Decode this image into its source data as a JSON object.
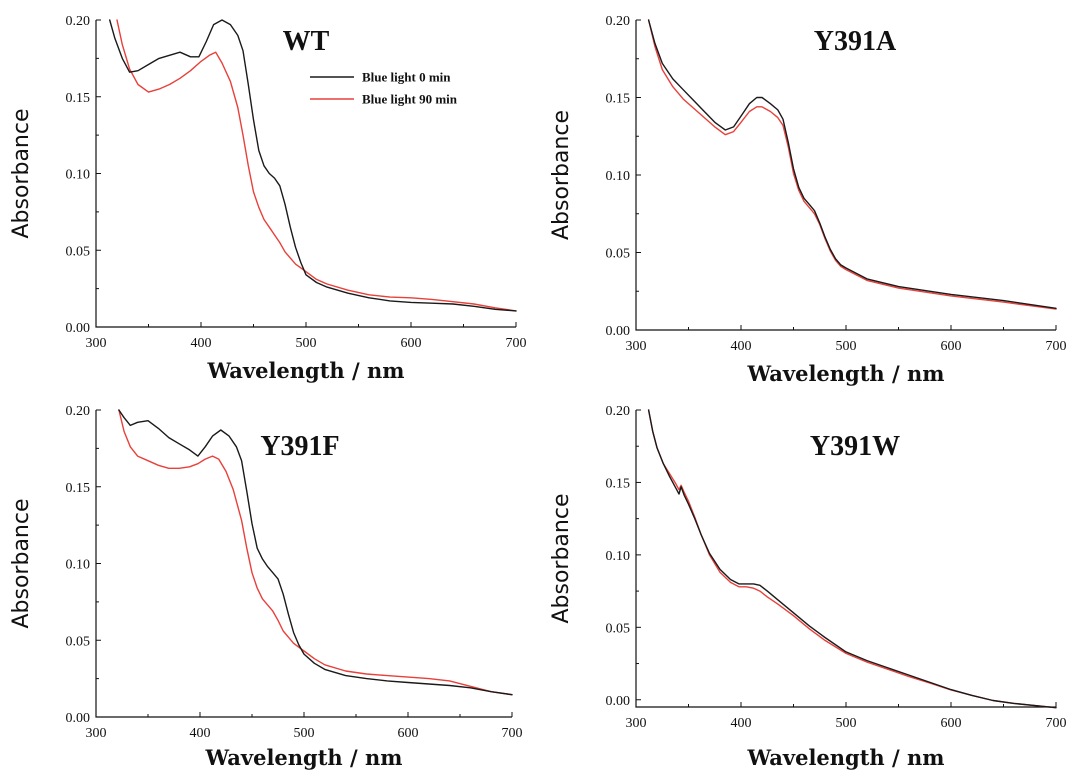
{
  "colors": {
    "series_0": "#1a1a1a",
    "series_90": "#e8403a",
    "axis": "#111111"
  },
  "chart_data": [
    {
      "type": "line",
      "title": "WT",
      "xlabel": "Wavelength / nm",
      "ylabel": "Absorbance",
      "xlim": [
        300,
        700
      ],
      "ylim": [
        0,
        0.2
      ],
      "xticks": [
        "300",
        "400",
        "500",
        "600",
        "700"
      ],
      "yticks": [
        "0.00",
        "0.05",
        "0.10",
        "0.15",
        "0.20"
      ],
      "legend": "top-right",
      "grid": false,
      "series": [
        {
          "name": "Blue light 0 min",
          "color": "#1a1a1a",
          "x": [
            313,
            318,
            325,
            332,
            340,
            350,
            360,
            370,
            380,
            390,
            398,
            405,
            412,
            420,
            428,
            435,
            440,
            445,
            450,
            455,
            460,
            465,
            470,
            475,
            480,
            485,
            490,
            495,
            500,
            510,
            520,
            540,
            560,
            580,
            600,
            620,
            640,
            660,
            680,
            700
          ],
          "y": [
            0.2,
            0.188,
            0.175,
            0.166,
            0.167,
            0.171,
            0.175,
            0.177,
            0.179,
            0.176,
            0.176,
            0.186,
            0.197,
            0.2,
            0.197,
            0.19,
            0.18,
            0.158,
            0.135,
            0.115,
            0.105,
            0.1,
            0.097,
            0.092,
            0.08,
            0.065,
            0.052,
            0.042,
            0.034,
            0.029,
            0.026,
            0.022,
            0.019,
            0.017,
            0.016,
            0.0155,
            0.015,
            0.0135,
            0.0115,
            0.0105
          ]
        },
        {
          "name": "Blue light 90 min",
          "color": "#e8403a",
          "x": [
            320,
            325,
            332,
            340,
            350,
            360,
            370,
            380,
            390,
            400,
            408,
            414,
            420,
            428,
            435,
            440,
            445,
            450,
            455,
            460,
            465,
            470,
            475,
            480,
            490,
            500,
            510,
            520,
            540,
            560,
            580,
            600,
            620,
            640,
            660,
            680,
            700
          ],
          "y": [
            0.2,
            0.184,
            0.168,
            0.158,
            0.153,
            0.155,
            0.158,
            0.162,
            0.167,
            0.173,
            0.177,
            0.179,
            0.172,
            0.16,
            0.143,
            0.125,
            0.105,
            0.088,
            0.078,
            0.07,
            0.065,
            0.06,
            0.055,
            0.049,
            0.041,
            0.036,
            0.031,
            0.028,
            0.024,
            0.021,
            0.0195,
            0.019,
            0.018,
            0.0165,
            0.015,
            0.0125,
            0.0105
          ]
        }
      ]
    },
    {
      "type": "line",
      "title": "Y391A",
      "xlabel": "Wavelength / nm",
      "ylabel": "Absorbance",
      "xlim": [
        300,
        700
      ],
      "ylim": [
        0,
        0.2
      ],
      "xticks": [
        "300",
        "400",
        "500",
        "600",
        "700"
      ],
      "yticks": [
        "0.00",
        "0.05",
        "0.10",
        "0.15",
        "0.20"
      ],
      "grid": false,
      "series": [
        {
          "color": "#1a1a1a",
          "x": [
            312,
            318,
            325,
            335,
            345,
            355,
            365,
            375,
            385,
            393,
            400,
            408,
            415,
            420,
            428,
            435,
            440,
            445,
            450,
            455,
            460,
            465,
            470,
            475,
            480,
            485,
            490,
            495,
            500,
            520,
            550,
            600,
            650,
            700
          ],
          "y": [
            0.2,
            0.185,
            0.172,
            0.162,
            0.155,
            0.148,
            0.141,
            0.134,
            0.129,
            0.131,
            0.138,
            0.146,
            0.15,
            0.15,
            0.146,
            0.142,
            0.136,
            0.121,
            0.104,
            0.092,
            0.085,
            0.081,
            0.077,
            0.069,
            0.06,
            0.052,
            0.046,
            0.042,
            0.04,
            0.033,
            0.028,
            0.023,
            0.019,
            0.014
          ]
        },
        {
          "color": "#e8403a",
          "x": [
            312,
            318,
            325,
            335,
            345,
            355,
            365,
            375,
            385,
            393,
            400,
            408,
            415,
            420,
            428,
            435,
            440,
            445,
            450,
            455,
            460,
            465,
            470,
            475,
            480,
            485,
            490,
            495,
            500,
            520,
            550,
            600,
            650,
            700
          ],
          "y": [
            0.2,
            0.183,
            0.168,
            0.157,
            0.149,
            0.143,
            0.137,
            0.131,
            0.126,
            0.128,
            0.134,
            0.141,
            0.144,
            0.144,
            0.141,
            0.137,
            0.132,
            0.118,
            0.101,
            0.09,
            0.083,
            0.079,
            0.075,
            0.068,
            0.059,
            0.051,
            0.045,
            0.041,
            0.039,
            0.032,
            0.027,
            0.022,
            0.018,
            0.0135
          ]
        }
      ]
    },
    {
      "type": "line",
      "title": "Y391F",
      "xlabel": "Wavelength / nm",
      "ylabel": "Absorbance",
      "xlim": [
        300,
        700
      ],
      "ylim": [
        0,
        0.2
      ],
      "xticks": [
        "300",
        "400",
        "500",
        "600",
        "700"
      ],
      "yticks": [
        "0.00",
        "0.05",
        "0.10",
        "0.15",
        "0.20"
      ],
      "grid": false,
      "series": [
        {
          "color": "#1a1a1a",
          "x": [
            322,
            327,
            333,
            340,
            350,
            360,
            370,
            380,
            390,
            398,
            405,
            412,
            420,
            428,
            435,
            440,
            445,
            450,
            455,
            460,
            465,
            470,
            475,
            480,
            485,
            490,
            495,
            500,
            510,
            520,
            540,
            560,
            580,
            600,
            620,
            640,
            660,
            680,
            700
          ],
          "y": [
            0.2,
            0.195,
            0.19,
            0.192,
            0.193,
            0.188,
            0.182,
            0.178,
            0.174,
            0.17,
            0.176,
            0.183,
            0.187,
            0.183,
            0.176,
            0.167,
            0.147,
            0.126,
            0.11,
            0.103,
            0.098,
            0.094,
            0.09,
            0.08,
            0.067,
            0.055,
            0.047,
            0.041,
            0.035,
            0.031,
            0.027,
            0.025,
            0.0235,
            0.0225,
            0.0215,
            0.0205,
            0.019,
            0.0165,
            0.0145
          ]
        },
        {
          "color": "#e8403a",
          "x": [
            322,
            327,
            333,
            340,
            350,
            360,
            370,
            380,
            390,
            398,
            405,
            412,
            418,
            425,
            432,
            440,
            445,
            450,
            455,
            460,
            465,
            470,
            475,
            480,
            490,
            500,
            510,
            520,
            540,
            560,
            580,
            600,
            620,
            640,
            660,
            680,
            700
          ],
          "y": [
            0.2,
            0.186,
            0.176,
            0.17,
            0.167,
            0.164,
            0.162,
            0.162,
            0.163,
            0.165,
            0.168,
            0.17,
            0.168,
            0.16,
            0.148,
            0.128,
            0.11,
            0.094,
            0.084,
            0.077,
            0.073,
            0.069,
            0.063,
            0.056,
            0.048,
            0.043,
            0.038,
            0.034,
            0.03,
            0.028,
            0.027,
            0.026,
            0.025,
            0.0235,
            0.02,
            0.0165,
            0.0145
          ]
        }
      ]
    },
    {
      "type": "line",
      "title": "Y391W",
      "xlabel": "Wavelength / nm",
      "ylabel": "Absorbance",
      "xlim": [
        300,
        700
      ],
      "ylim": [
        -0.005,
        0.2
      ],
      "xticks": [
        "300",
        "400",
        "500",
        "600",
        "700"
      ],
      "yticks": [
        "0.00",
        "0.05",
        "0.10",
        "0.15",
        "0.20"
      ],
      "grid": false,
      "series": [
        {
          "color": "#1a1a1a",
          "x": [
            312,
            316,
            320,
            326,
            332,
            338,
            341,
            343,
            346,
            350,
            356,
            362,
            370,
            380,
            390,
            398,
            405,
            412,
            418,
            425,
            435,
            450,
            465,
            480,
            500,
            520,
            540,
            560,
            580,
            600,
            620,
            640,
            660,
            680,
            700
          ],
          "y": [
            0.2,
            0.185,
            0.174,
            0.163,
            0.154,
            0.146,
            0.142,
            0.147,
            0.141,
            0.135,
            0.125,
            0.114,
            0.101,
            0.09,
            0.083,
            0.08,
            0.08,
            0.08,
            0.079,
            0.075,
            0.069,
            0.06,
            0.051,
            0.043,
            0.033,
            0.027,
            0.022,
            0.017,
            0.012,
            0.007,
            0.003,
            -0.0005,
            -0.0025,
            -0.004,
            -0.0055
          ]
        },
        {
          "color": "#e8403a",
          "x": [
            312,
            316,
            320,
            326,
            332,
            338,
            341,
            343,
            346,
            350,
            356,
            362,
            370,
            380,
            390,
            398,
            405,
            412,
            418,
            425,
            435,
            450,
            465,
            480,
            500,
            520,
            540,
            560,
            580,
            600,
            620,
            640,
            660,
            680,
            700
          ],
          "y": [
            0.2,
            0.185,
            0.174,
            0.163,
            0.156,
            0.149,
            0.145,
            0.148,
            0.143,
            0.137,
            0.126,
            0.114,
            0.1,
            0.088,
            0.081,
            0.078,
            0.078,
            0.077,
            0.075,
            0.071,
            0.066,
            0.058,
            0.049,
            0.041,
            0.032,
            0.026,
            0.021,
            0.016,
            0.0115,
            0.0068,
            0.003,
            -0.0005,
            -0.0025,
            -0.004,
            -0.0055
          ]
        }
      ]
    }
  ]
}
